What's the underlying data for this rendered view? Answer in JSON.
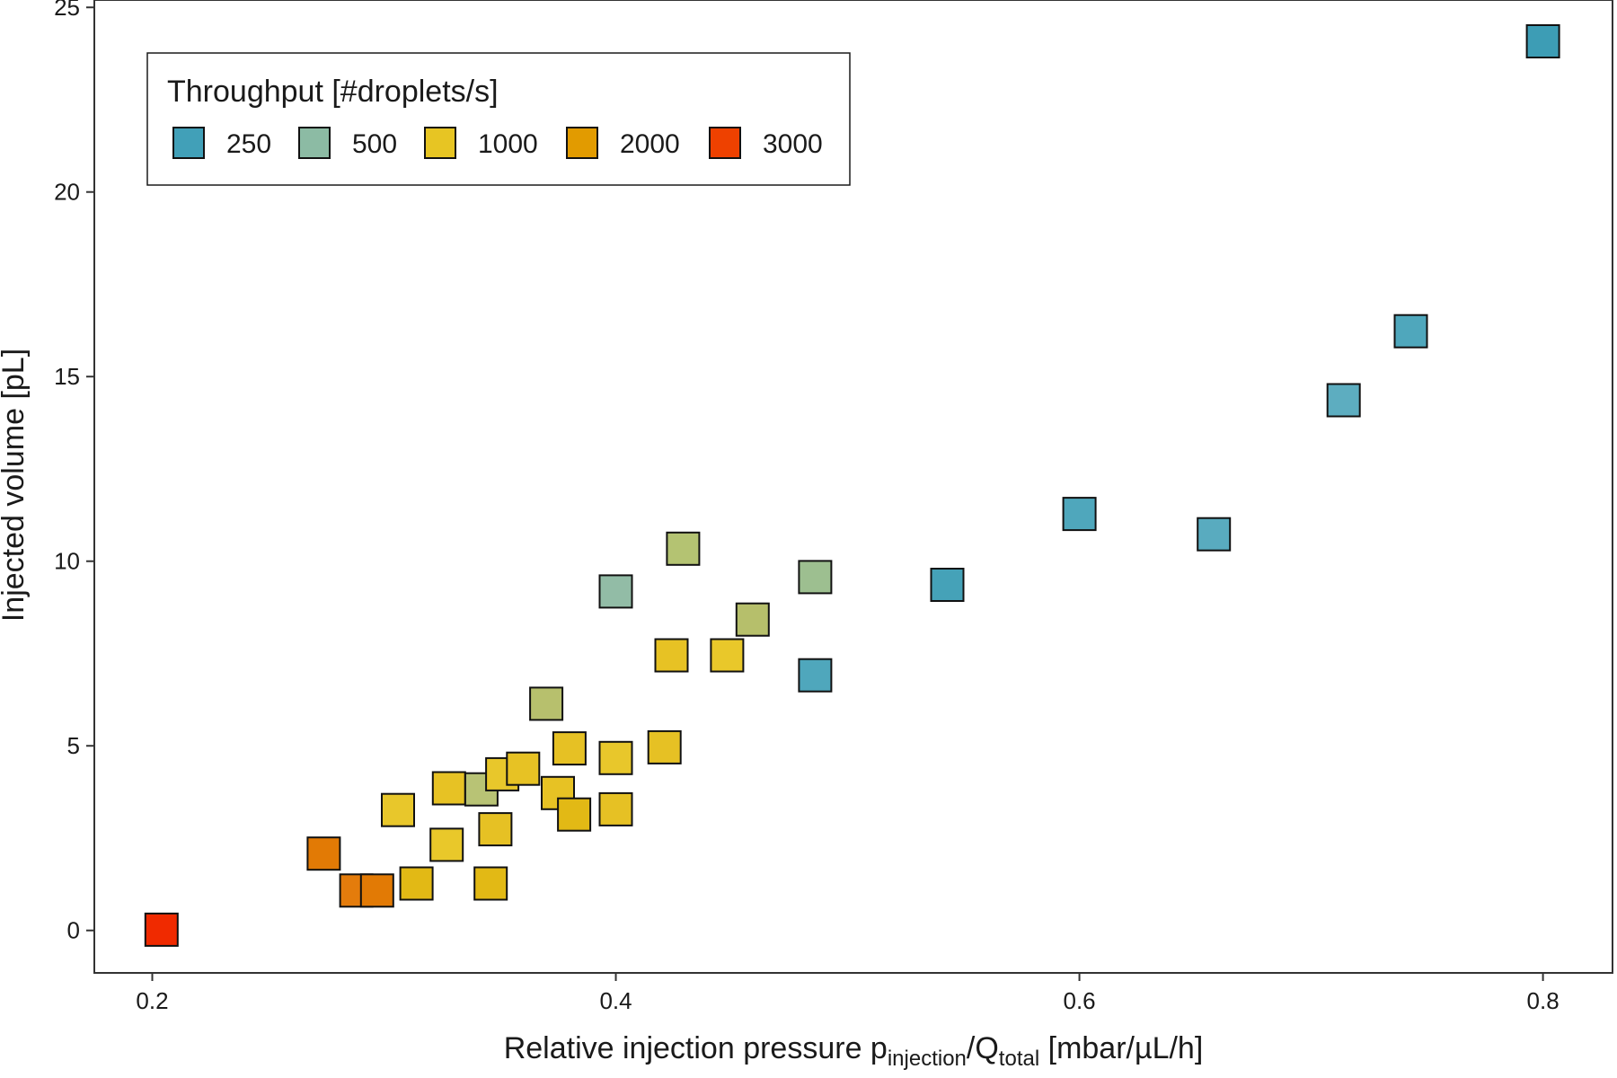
{
  "chart_data": {
    "type": "scatter",
    "title": "",
    "xlabel": {
      "main": "Relative injection pressure p",
      "sub1": "injection",
      "slash": "/Q",
      "sub2": "total",
      "unit": " [mbar/µL/h]"
    },
    "ylabel": "Injected volume [pL]",
    "xlim": [
      0.175,
      0.83
    ],
    "ylim": [
      -1.15,
      25.2
    ],
    "x_ticks": [
      "0.2",
      "0.4",
      "0.6",
      "0.8"
    ],
    "x_tick_values": [
      0.2,
      0.4,
      0.6,
      0.8
    ],
    "y_ticks": [
      "0",
      "5",
      "10",
      "15",
      "20",
      "25"
    ],
    "y_tick_values": [
      0,
      5,
      10,
      15,
      20,
      25
    ],
    "grid": false,
    "legend": {
      "title": "Throughput [#droplets/s]",
      "placement": "top-left",
      "entries": [
        {
          "label": "250",
          "color": "#41A0B8"
        },
        {
          "label": "500",
          "color": "#8CBBA4"
        },
        {
          "label": "1000",
          "color": "#E7C523"
        },
        {
          "label": "2000",
          "color": "#E29B00"
        },
        {
          "label": "3000",
          "color": "#EE4100"
        }
      ]
    },
    "points": [
      {
        "x": 0.204,
        "y": 0.02,
        "color": "#F02A00"
      },
      {
        "x": 0.274,
        "y": 2.08,
        "color": "#E27A05"
      },
      {
        "x": 0.288,
        "y": 1.08,
        "color": "#E47C0C"
      },
      {
        "x": 0.297,
        "y": 1.08,
        "color": "#E27A05"
      },
      {
        "x": 0.306,
        "y": 3.26,
        "color": "#E8C72B"
      },
      {
        "x": 0.314,
        "y": 1.27,
        "color": "#E2B915"
      },
      {
        "x": 0.327,
        "y": 2.32,
        "color": "#E9C82A"
      },
      {
        "x": 0.328,
        "y": 3.85,
        "color": "#E7C224"
      },
      {
        "x": 0.342,
        "y": 3.82,
        "color": "#B8C375"
      },
      {
        "x": 0.346,
        "y": 1.27,
        "color": "#E2B915"
      },
      {
        "x": 0.348,
        "y": 2.74,
        "color": "#E6C124"
      },
      {
        "x": 0.351,
        "y": 4.23,
        "color": "#E8C72B"
      },
      {
        "x": 0.36,
        "y": 4.38,
        "color": "#E7C224"
      },
      {
        "x": 0.37,
        "y": 6.14,
        "color": "#B7C06D"
      },
      {
        "x": 0.375,
        "y": 3.72,
        "color": "#E7C224"
      },
      {
        "x": 0.38,
        "y": 4.93,
        "color": "#E6C124"
      },
      {
        "x": 0.382,
        "y": 3.14,
        "color": "#E2B915"
      },
      {
        "x": 0.4,
        "y": 9.18,
        "color": "#92BCA6"
      },
      {
        "x": 0.4,
        "y": 4.67,
        "color": "#E8C72B"
      },
      {
        "x": 0.4,
        "y": 3.28,
        "color": "#E6C124"
      },
      {
        "x": 0.421,
        "y": 4.96,
        "color": "#E6C124"
      },
      {
        "x": 0.424,
        "y": 7.45,
        "color": "#E7C224"
      },
      {
        "x": 0.429,
        "y": 10.34,
        "color": "#B4C372"
      },
      {
        "x": 0.448,
        "y": 7.45,
        "color": "#E9C82A"
      },
      {
        "x": 0.459,
        "y": 8.42,
        "color": "#B6BF6B"
      },
      {
        "x": 0.486,
        "y": 9.57,
        "color": "#9DBF90"
      },
      {
        "x": 0.486,
        "y": 6.91,
        "color": "#4FA7BC"
      },
      {
        "x": 0.543,
        "y": 9.36,
        "color": "#45A2B8"
      },
      {
        "x": 0.6,
        "y": 11.28,
        "color": "#4FA7BC"
      },
      {
        "x": 0.658,
        "y": 10.73,
        "color": "#59ABBF"
      },
      {
        "x": 0.714,
        "y": 14.36,
        "color": "#5DADC0"
      },
      {
        "x": 0.743,
        "y": 16.23,
        "color": "#4FA7BC"
      },
      {
        "x": 0.8,
        "y": 24.08,
        "color": "#3D9DB5"
      }
    ]
  }
}
